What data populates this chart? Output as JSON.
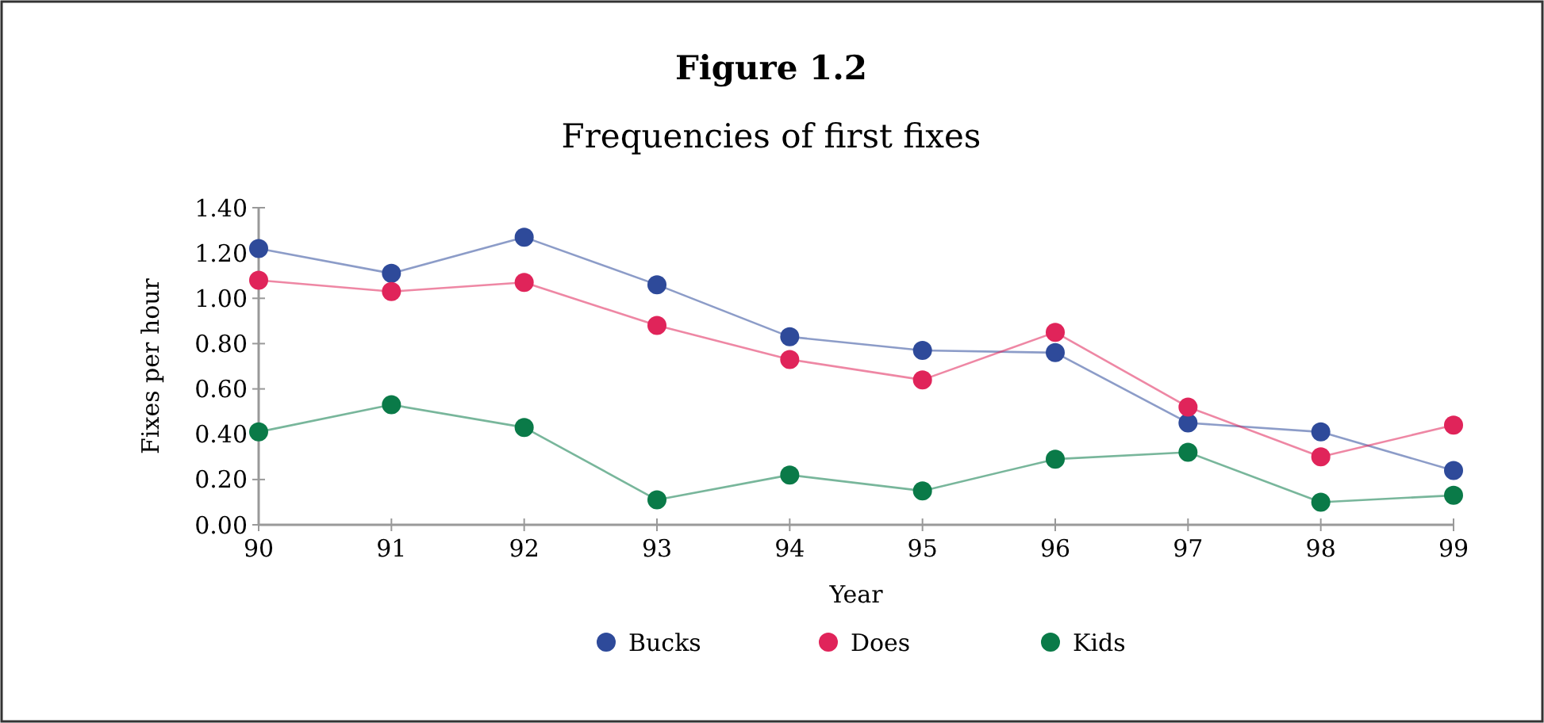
{
  "chart_data": {
    "type": "line",
    "title": "Figure 1.2",
    "subtitle": "Frequencies of first fixes",
    "xlabel": "Year",
    "ylabel": "Fixes per hour",
    "x": [
      90,
      91,
      92,
      93,
      94,
      95,
      96,
      97,
      98,
      99
    ],
    "xlim": [
      90,
      99
    ],
    "xticks": [
      90,
      91,
      92,
      93,
      94,
      95,
      96,
      97,
      98,
      99
    ],
    "ylim": [
      0,
      1.4
    ],
    "yticks": [
      {
        "value": 0,
        "label": "0.00"
      },
      {
        "value": 0.2,
        "label": "0.20"
      },
      {
        "value": 0.4,
        "label": "0.40"
      },
      {
        "value": 0.6,
        "label": "0.60"
      },
      {
        "value": 0.8,
        "label": "0.80"
      },
      {
        "value": 1,
        "label": "1.00"
      },
      {
        "value": 1.2,
        "label": "1.20"
      },
      {
        "value": 1.4,
        "label": "1.40"
      }
    ],
    "marker": "circle",
    "legend": "bottom",
    "grid": false,
    "series": [
      {
        "name": "Bucks",
        "color": "#2e4a9a",
        "values": [
          1.22,
          1.11,
          1.27,
          1.06,
          0.83,
          0.77,
          0.76,
          0.45,
          0.41,
          0.24
        ]
      },
      {
        "name": "Does",
        "color": "#e0245a",
        "values": [
          1.08,
          1.03,
          1.07,
          0.88,
          0.73,
          0.64,
          0.85,
          0.52,
          0.3,
          0.44
        ]
      },
      {
        "name": "Kids",
        "color": "#0a7a48",
        "values": [
          0.41,
          0.53,
          0.43,
          0.11,
          0.22,
          0.15,
          0.29,
          0.32,
          0.1,
          0.13
        ]
      }
    ]
  }
}
